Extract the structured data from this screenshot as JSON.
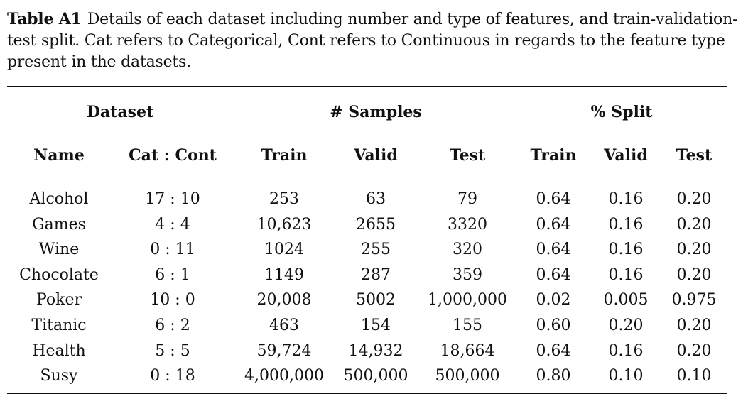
{
  "caption": {
    "label": "Table A1",
    "text": "Details of each dataset including number and type of features, and train-validation-test split. Cat refers to Categorical, Cont refers to Continuous in regards to the feature type present in the datasets."
  },
  "table": {
    "group_headers": {
      "dataset": "Dataset",
      "samples": "# Samples",
      "split": "% Split"
    },
    "column_headers": [
      "Name",
      "Cat : Cont",
      "Train",
      "Valid",
      "Test",
      "Train",
      "Valid",
      "Test"
    ],
    "rows": [
      [
        "Alcohol",
        "17 : 10",
        "253",
        "63",
        "79",
        "0.64",
        "0.16",
        "0.20"
      ],
      [
        "Games",
        "4 : 4",
        "10,623",
        "2655",
        "3320",
        "0.64",
        "0.16",
        "0.20"
      ],
      [
        "Wine",
        "0 : 11",
        "1024",
        "255",
        "320",
        "0.64",
        "0.16",
        "0.20"
      ],
      [
        "Chocolate",
        "6 : 1",
        "1149",
        "287",
        "359",
        "0.64",
        "0.16",
        "0.20"
      ],
      [
        "Poker",
        "10 : 0",
        "20,008",
        "5002",
        "1,000,000",
        "0.02",
        "0.005",
        "0.975"
      ],
      [
        "Titanic",
        "6 : 2",
        "463",
        "154",
        "155",
        "0.60",
        "0.20",
        "0.20"
      ],
      [
        "Health",
        "5 : 5",
        "59,724",
        "14,932",
        "18,664",
        "0.64",
        "0.16",
        "0.20"
      ],
      [
        "Susy",
        "0 : 18",
        "4,000,000",
        "500,000",
        "500,000",
        "0.80",
        "0.10",
        "0.10"
      ]
    ]
  }
}
